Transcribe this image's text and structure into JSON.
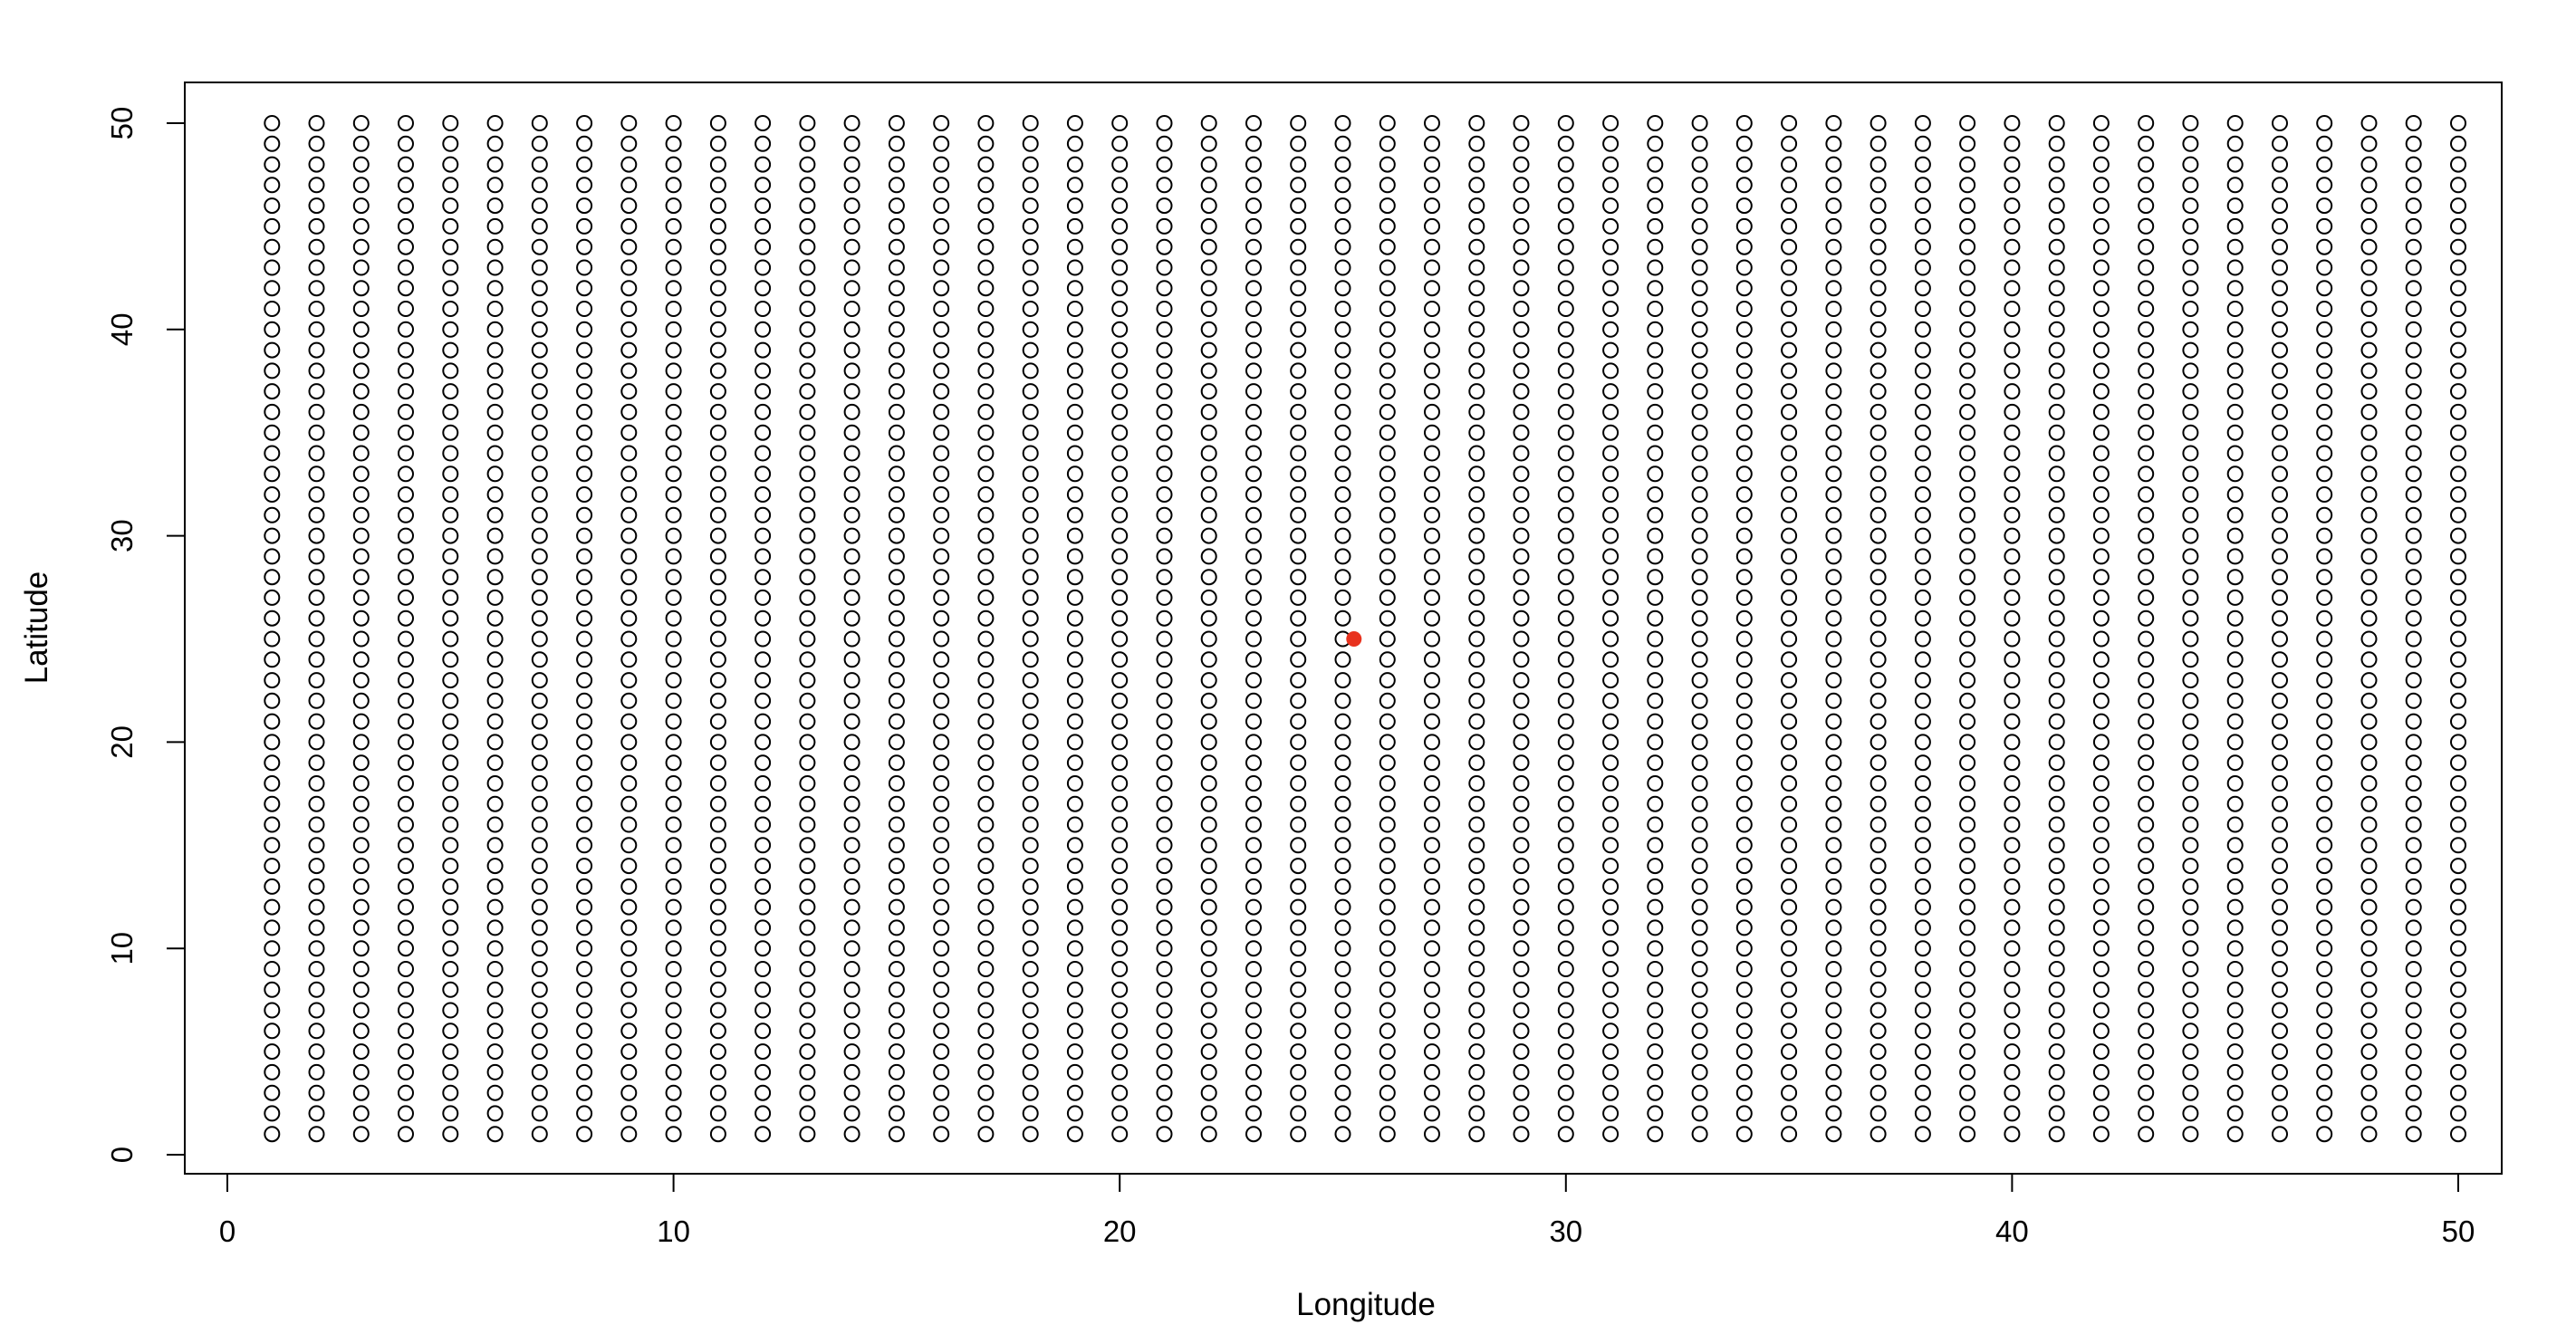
{
  "chart_data": {
    "type": "scatter",
    "title": "",
    "xlabel": "Longitude",
    "ylabel": "Latitude",
    "xlim": [
      0,
      51
    ],
    "ylim": [
      0,
      50.85
    ],
    "xticks": [
      0,
      10,
      20,
      30,
      40,
      50
    ],
    "yticks": [
      0,
      10,
      20,
      30,
      40,
      50
    ],
    "grid": false,
    "legend": "none",
    "series": [
      {
        "grid_points": {
          "x_from": 1,
          "x_to": 50,
          "x_step": 1,
          "y_from": 1,
          "y_to": 50,
          "y_step": 1
        },
        "marker": "open-circle",
        "color": "#000000"
      },
      {
        "points": [
          {
            "x": 25.25,
            "y": 25
          }
        ],
        "marker": "filled-circle",
        "color": "#e8321e"
      }
    ]
  }
}
